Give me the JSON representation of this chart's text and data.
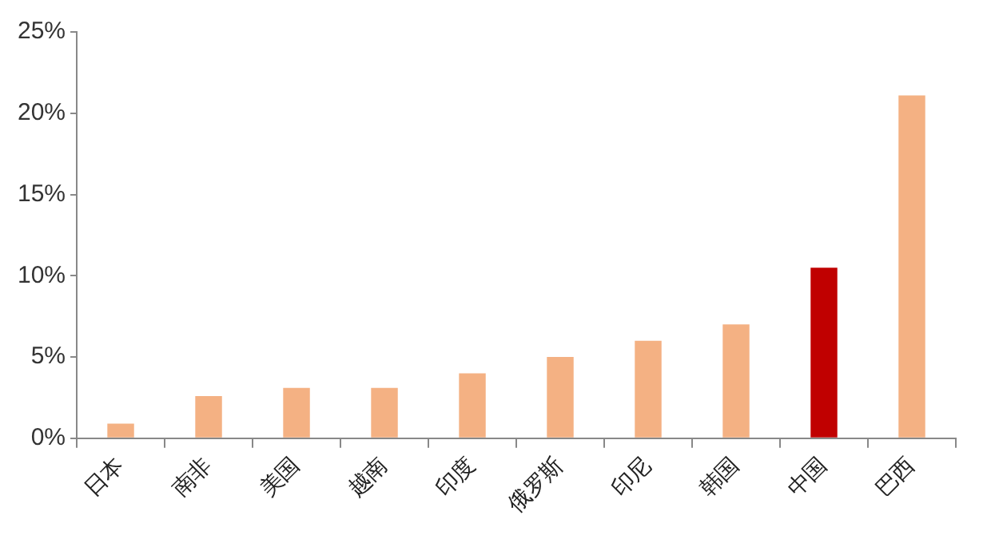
{
  "chart_data": {
    "type": "bar",
    "categories": [
      "日本",
      "南非",
      "美国",
      "越南",
      "印度",
      "俄罗斯",
      "印尼",
      "韩国",
      "中国",
      "巴西"
    ],
    "values": [
      0.9,
      2.6,
      3.1,
      3.1,
      4.0,
      5.0,
      6.0,
      7.0,
      10.5,
      21.1
    ],
    "colors": [
      "#f4b183",
      "#f4b183",
      "#f4b183",
      "#f4b183",
      "#f4b183",
      "#f4b183",
      "#f4b183",
      "#f4b183",
      "#c00000",
      "#f4b183"
    ],
    "ylim": [
      0,
      25
    ],
    "yticks": [
      {
        "value": 0,
        "label": "0%"
      },
      {
        "value": 5,
        "label": "5%"
      },
      {
        "value": 10,
        "label": "10%"
      },
      {
        "value": 15,
        "label": "15%"
      },
      {
        "value": 20,
        "label": "20%"
      },
      {
        "value": 25,
        "label": "25%"
      }
    ],
    "grid": false,
    "legend": false
  }
}
